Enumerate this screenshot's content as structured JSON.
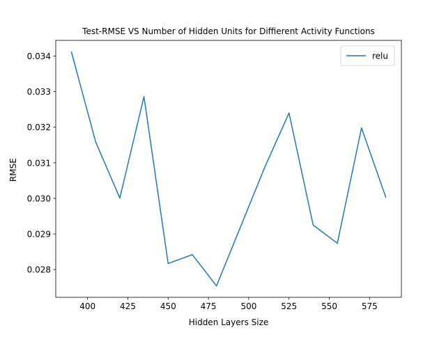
{
  "chart_data": {
    "type": "line",
    "title": "Test-RMSE VS Number of Hidden Units for Diffierent Activity Functions",
    "xlabel": "Hidden Layers Size",
    "ylabel": "RMSE",
    "xlim": [
      380.25,
      594.75
    ],
    "ylim": [
      0.02722,
      0.03444
    ],
    "x_ticks": [
      400,
      425,
      450,
      475,
      500,
      525,
      550,
      575
    ],
    "x_tick_labels": [
      "400",
      "425",
      "450",
      "475",
      "500",
      "525",
      "550",
      "575"
    ],
    "y_ticks": [
      0.028,
      0.029,
      0.03,
      0.031,
      0.032,
      0.033,
      0.034
    ],
    "y_tick_labels": [
      "0.028",
      "0.029",
      "0.030",
      "0.031",
      "0.032",
      "0.033",
      "0.034"
    ],
    "grid": false,
    "legend_position": "top-right",
    "series": [
      {
        "name": "relu",
        "color": "#1f77b4",
        "x": [
          390,
          405,
          420,
          435,
          450,
          465,
          480,
          495,
          510,
          525,
          540,
          555,
          570,
          585
        ],
        "y": [
          0.03411,
          0.03159,
          0.03001,
          0.03286,
          0.02817,
          0.02842,
          0.02754,
          0.02921,
          0.03088,
          0.0324,
          0.02925,
          0.02874,
          0.03198,
          0.03004
        ]
      }
    ]
  }
}
